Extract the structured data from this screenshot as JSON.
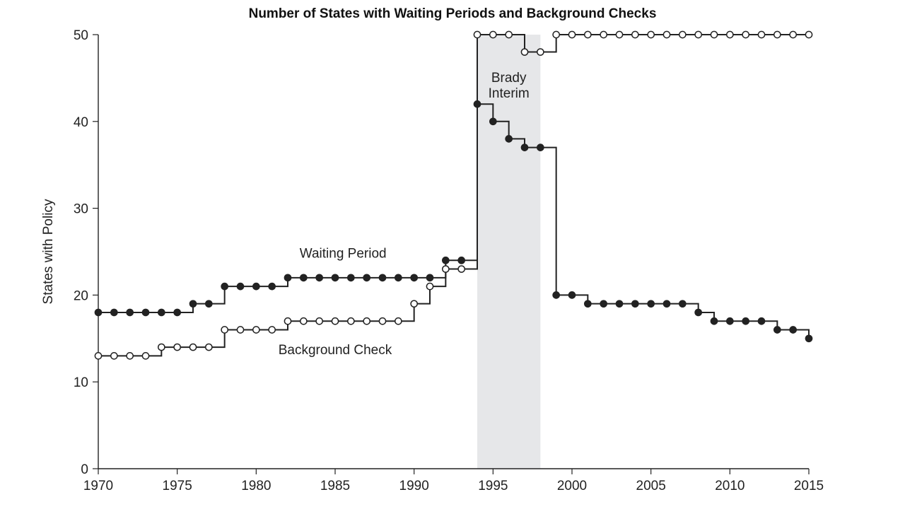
{
  "chart_data": {
    "type": "line",
    "title": "Number of States with Waiting Periods and Background Checks",
    "xlabel": "",
    "ylabel": "States with Policy",
    "xlim": [
      1970,
      2015
    ],
    "ylim": [
      0,
      50
    ],
    "xticks": [
      1970,
      1975,
      1980,
      1985,
      1990,
      1995,
      2000,
      2005,
      2010,
      2015
    ],
    "yticks": [
      0,
      10,
      20,
      30,
      40,
      50
    ],
    "grid": false,
    "step": "post",
    "shaded_region": {
      "x_start": 1994,
      "x_end": 1998,
      "label_lines": [
        "Brady",
        "Interim"
      ],
      "color": "#e6e7e9"
    },
    "x": [
      1970,
      1971,
      1972,
      1973,
      1974,
      1975,
      1976,
      1977,
      1978,
      1979,
      1980,
      1981,
      1982,
      1983,
      1984,
      1985,
      1986,
      1987,
      1988,
      1989,
      1990,
      1991,
      1992,
      1993,
      1994,
      1995,
      1996,
      1997,
      1998,
      1999,
      2000,
      2001,
      2002,
      2003,
      2004,
      2005,
      2006,
      2007,
      2008,
      2009,
      2010,
      2011,
      2012,
      2013,
      2014,
      2015
    ],
    "series": [
      {
        "name": "Waiting Period",
        "marker": "filled-circle",
        "color": "#222222",
        "values": [
          18,
          18,
          18,
          18,
          18,
          18,
          19,
          19,
          21,
          21,
          21,
          21,
          22,
          22,
          22,
          22,
          22,
          22,
          22,
          22,
          22,
          22,
          24,
          24,
          42,
          40,
          38,
          37,
          37,
          20,
          20,
          19,
          19,
          19,
          19,
          19,
          19,
          19,
          18,
          17,
          17,
          17,
          17,
          16,
          16,
          15
        ]
      },
      {
        "name": "Background Check",
        "marker": "open-circle",
        "color": "#222222",
        "values": [
          13,
          13,
          13,
          13,
          14,
          14,
          14,
          14,
          16,
          16,
          16,
          16,
          17,
          17,
          17,
          17,
          17,
          17,
          17,
          17,
          19,
          21,
          23,
          23,
          50,
          50,
          50,
          48,
          48,
          50,
          50,
          50,
          50,
          50,
          50,
          50,
          50,
          50,
          50,
          50,
          50,
          50,
          50,
          50,
          50,
          50
        ]
      }
    ],
    "annotations": [
      {
        "text": "Waiting Period",
        "x": 1985.5,
        "y": 24.3
      },
      {
        "text": "Background Check",
        "x": 1985,
        "y": 13.2
      }
    ]
  }
}
